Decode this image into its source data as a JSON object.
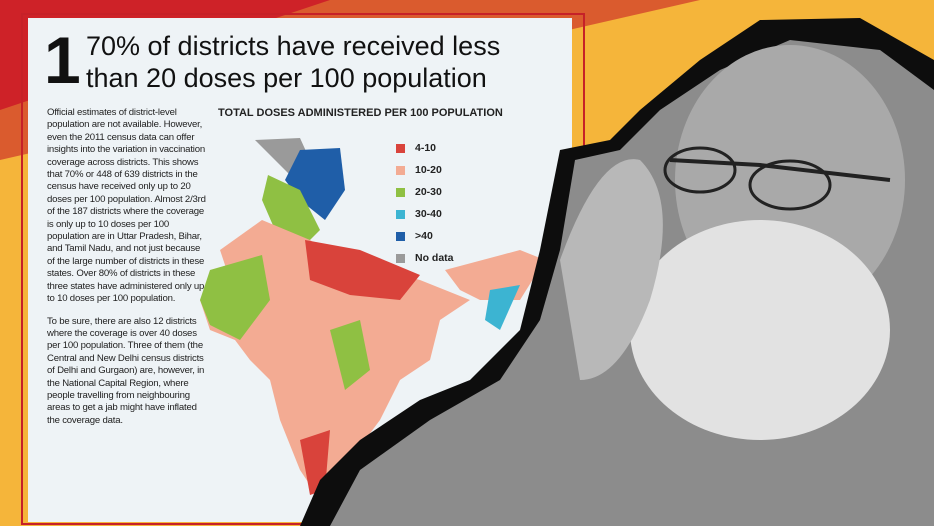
{
  "article": {
    "number": "1",
    "title": "70% of districts have received less than 20 doses per 100 population",
    "paragraphs": [
      "Official estimates of district-level population are not available. However, even the 2011 census data can offer insights into the variation in vaccination coverage across districts. This shows that 70% or 448 of 639 districts in the census have received only up to 20 doses per 100 population. Almost 2/3rd of the 187 districts where the coverage is only up to 10 doses per 100 population are in Uttar Pradesh, Bihar, and Tamil Nadu, and not just because of the large number of districts in these states. Over 80% of districts in these three states have administered only up to 10 doses per 100 population.",
      "To be sure, there are also 12 districts where the coverage is over 40 doses per 100 population. Three of them (the Central and New Delhi census districts of Delhi and Gurgaon) are, however, in the National Capital Region, where people travelling from neighbouring areas to get a jab might have inflated the coverage data."
    ],
    "map": {
      "title": "TOTAL DOSES ADMINISTERED PER 100 POPULATION",
      "legend": [
        {
          "label": "4-10",
          "color": "#d9433b"
        },
        {
          "label": "10-20",
          "color": "#f3ab93"
        },
        {
          "label": "20-30",
          "color": "#8fc043"
        },
        {
          "label": "30-40",
          "color": "#3cb4d2"
        },
        {
          "label": ">40",
          "color": "#1f5ea8"
        },
        {
          "label": "No data",
          "color": "#9a9a9a"
        }
      ]
    }
  }
}
